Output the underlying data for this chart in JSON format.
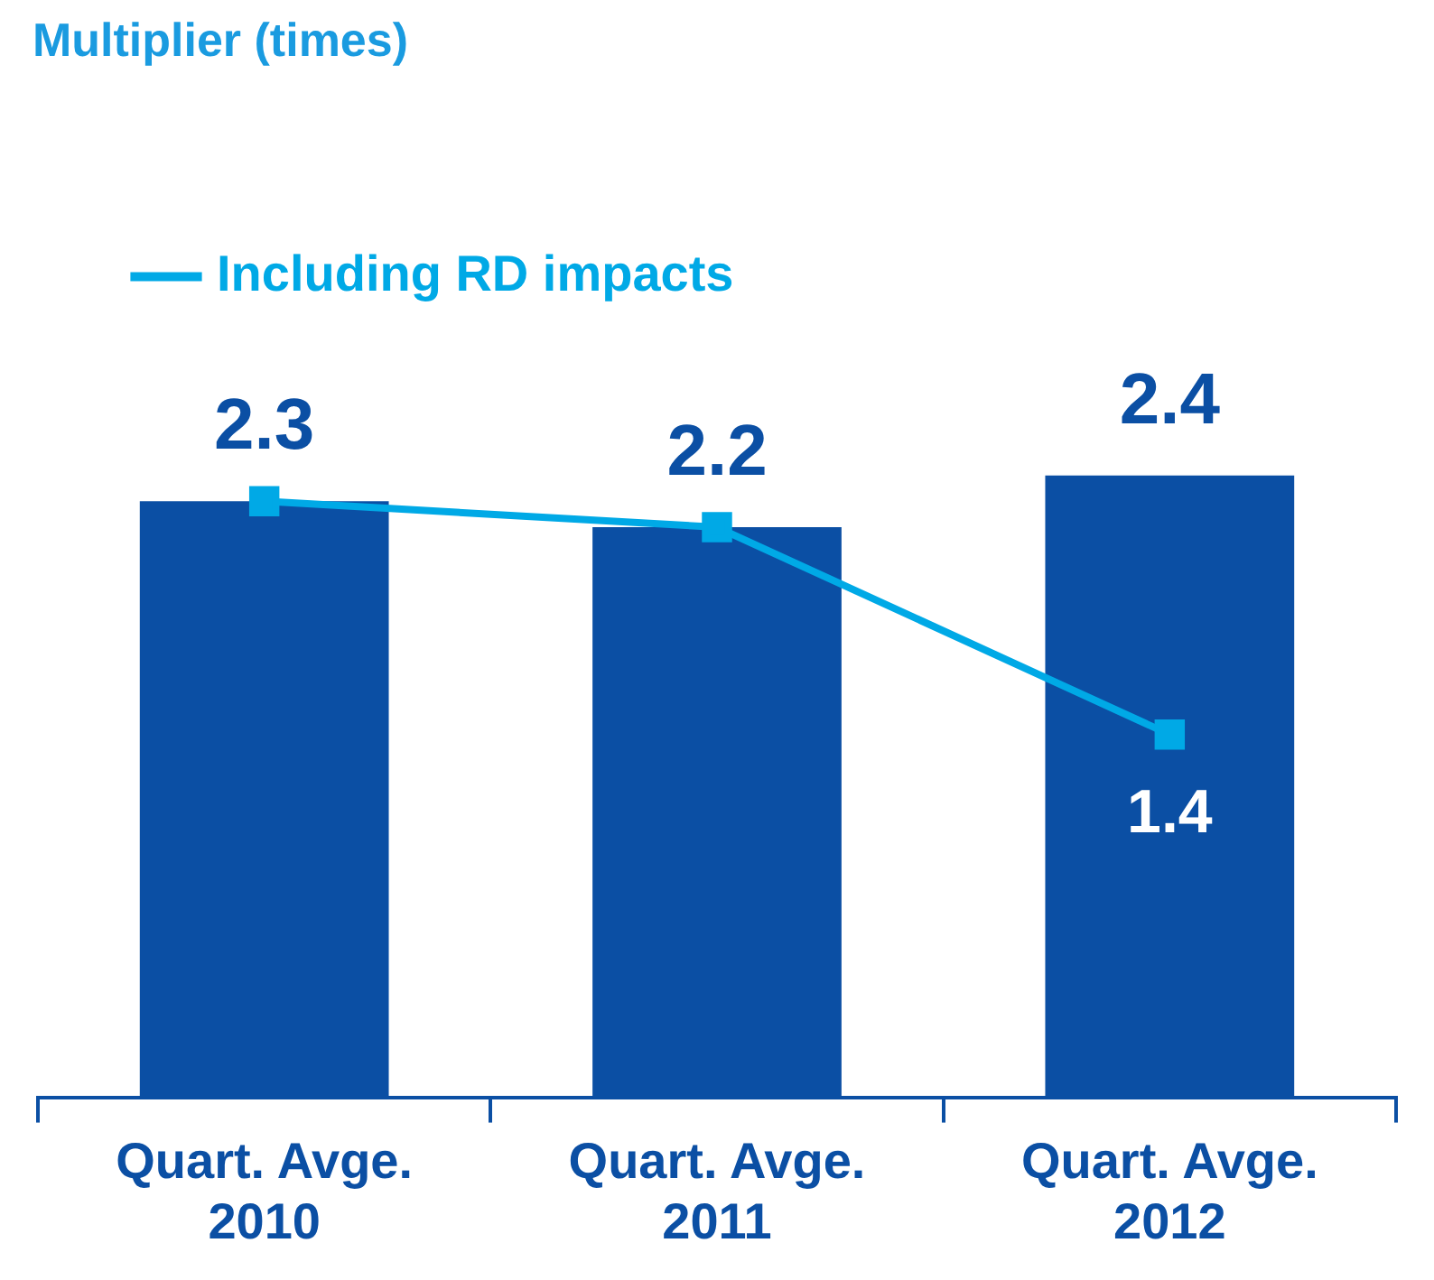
{
  "chart_data": {
    "type": "bar",
    "title": "Multiplier (times)",
    "categories": [
      "Quart. Avge. 2010",
      "Quart. Avge. 2011",
      "Quart. Avge. 2012"
    ],
    "series": [
      {
        "color": "#0b4fa4",
        "values": [
          2.3,
          2.2,
          2.4
        ],
        "value_labels": [
          "2.3",
          "2.2",
          "2.4"
        ]
      },
      {
        "type": "line",
        "name": "Including RD impacts",
        "color": "#00a9e6",
        "values": [
          2.3,
          2.2,
          1.4
        ],
        "value_labels": [
          null,
          null,
          "1.4"
        ]
      }
    ],
    "legend": "top left",
    "marker": "square",
    "grid": false
  }
}
